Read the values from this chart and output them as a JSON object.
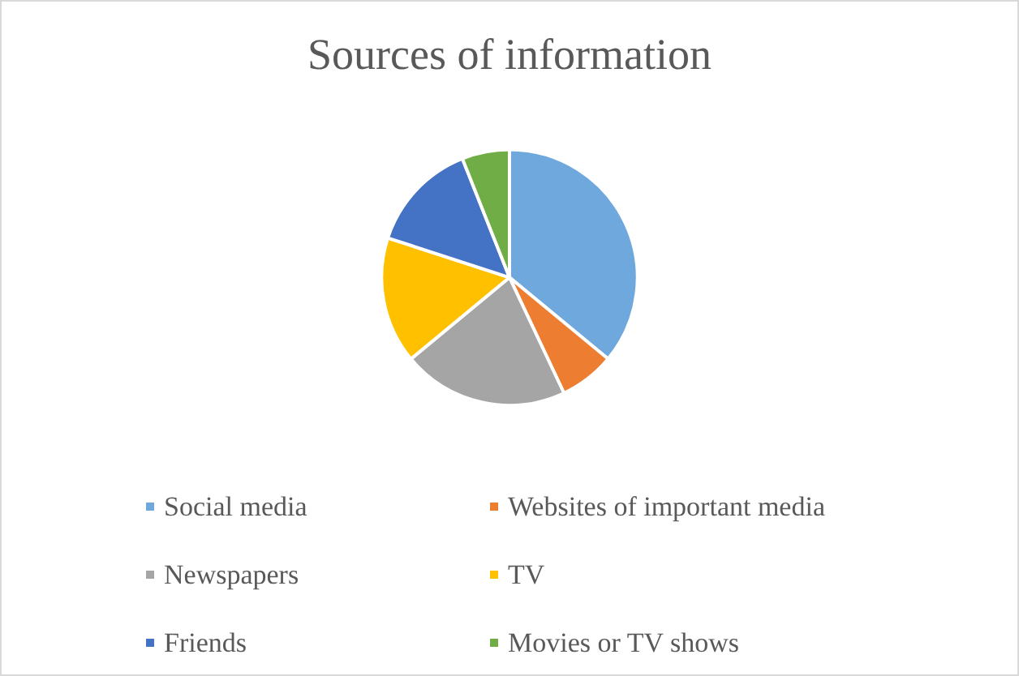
{
  "chart_data": {
    "type": "pie",
    "title": "Sources of information",
    "categories": [
      "Social media",
      "Websites of important media",
      "Newspapers",
      "TV",
      "Friends",
      "Movies or TV shows"
    ],
    "values": [
      36,
      7,
      21,
      16,
      14,
      6
    ],
    "colors": [
      "#6fa8dc",
      "#ed7d31",
      "#a5a5a5",
      "#ffc000",
      "#4472c4",
      "#70ad47"
    ],
    "legend": "bottom"
  }
}
